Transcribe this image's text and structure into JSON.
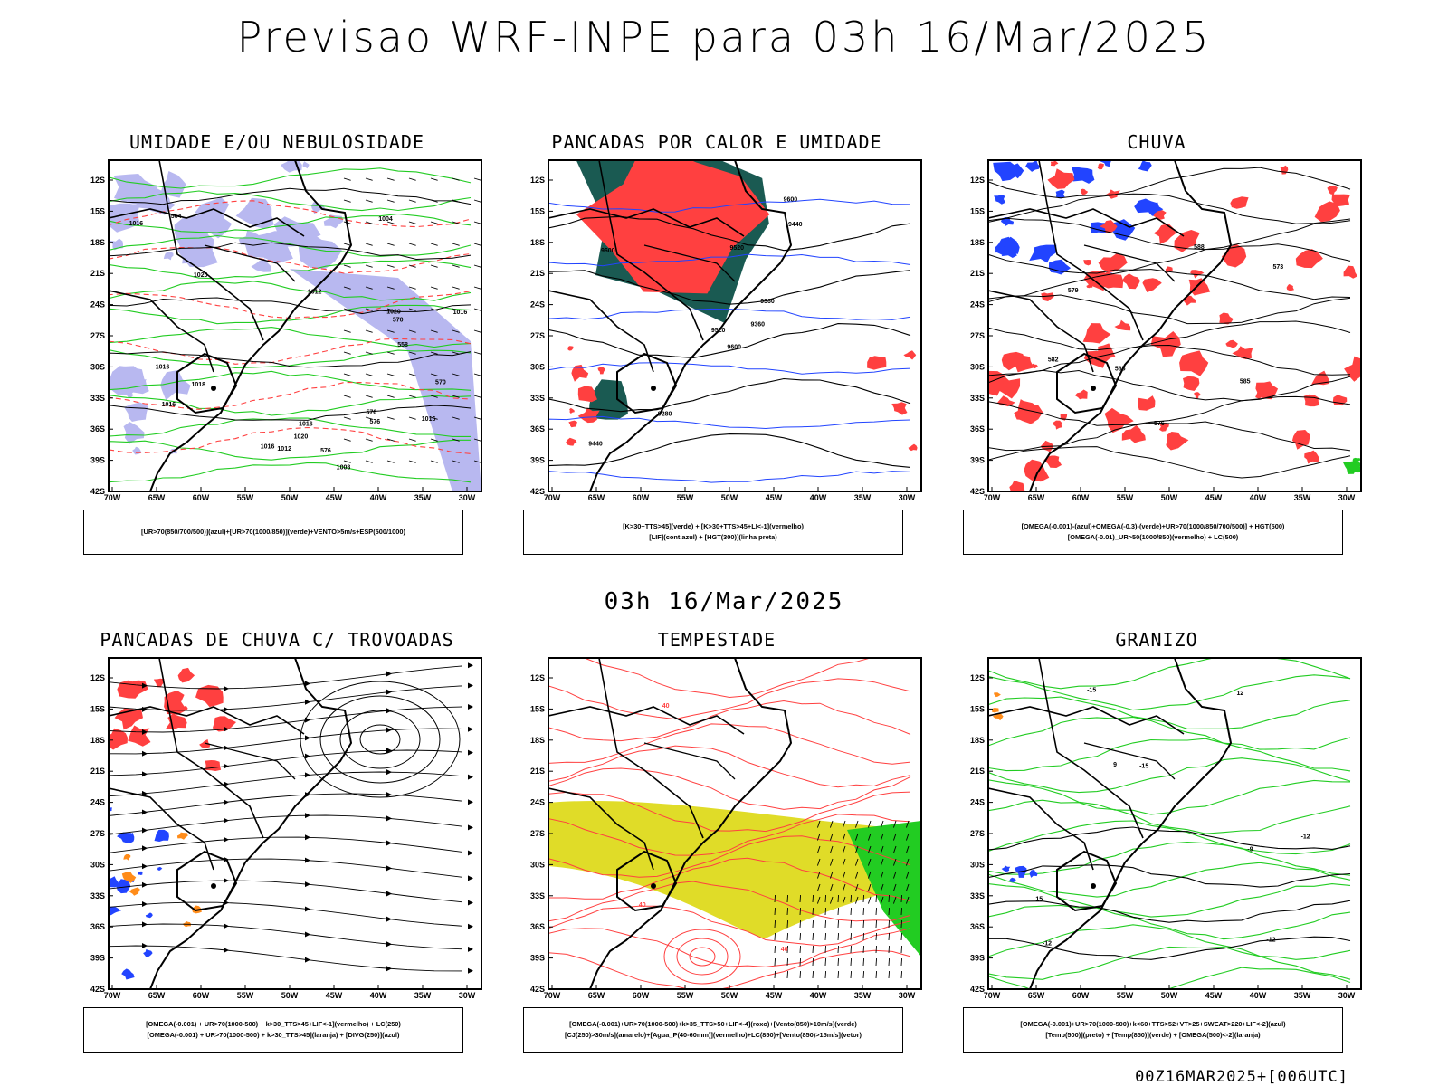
{
  "title": "Previsao WRF-INPE  para 03h 16/Mar/2025",
  "mid_title": "03h 16/Mar/2025",
  "footer": "00Z16MAR2025+[006UTC]",
  "lat_labels": [
    "12S",
    "15S",
    "18S",
    "21S",
    "24S",
    "27S",
    "30S",
    "33S",
    "36S",
    "39S",
    "42S"
  ],
  "lon_labels": [
    "70W",
    "65W",
    "60W",
    "55W",
    "50W",
    "45W",
    "40W",
    "35W",
    "30W"
  ],
  "colors": {
    "red": "#ff4040",
    "green": "#22cc22",
    "blue": "#2244ff",
    "teal": "#1a5a52",
    "lav": "#b8b8f0",
    "yellow": "#e0dc28",
    "orange": "#ff8c1a"
  },
  "panels": [
    {
      "title": "UMIDADE E/OU NEBULOSIDADE",
      "legend": [
        "[UR>70(850/700/500)](azul)+[UR>70(1000/850)](verde)+VENTO>5m/s+ESP(500/1000)"
      ],
      "labels": [
        "1016",
        "1016",
        "1012",
        "1016",
        "1016",
        "1016",
        "1020",
        "1016",
        "1020",
        "1020",
        "1018",
        "1016",
        "1012",
        "1008",
        "1004",
        "576",
        "576",
        "576",
        "570",
        "570",
        "564",
        "558"
      ]
    },
    {
      "title": "PANCADAS POR CALOR E UMIDADE",
      "legend": [
        "[K>30+TTS>45](verde) + [K>30+TTS>45+LI<-1](vermelho)",
        "[LIF](cont.azul) + [HGT(300)](linha preta)"
      ],
      "labels": [
        "9600",
        "9600",
        "9520",
        "9440",
        "9360",
        "9280",
        "9600",
        "9520",
        "9440",
        "9360"
      ]
    },
    {
      "title": "CHUVA",
      "legend": [
        "[OMEGA(-0.001)-(azul)+OMEGA(-0.3)-(verde)+UR>70(1000/850/700/500)] + HGT(500)",
        "[OMEGA(-0.01)_UR>50(1000/850)(vermelho) + LC(500)"
      ],
      "labels": [
        "588",
        "585",
        "585",
        "582",
        "579",
        "576",
        "573"
      ]
    },
    {
      "title": "PANCADAS DE CHUVA C/ TROVOADAS",
      "legend": [
        "[OMEGA(-0.001) + UR>70(1000-500) + k>30_TTS>45+LIF<-1](vermelho) + LC(250)",
        "[OMEGA(-0.001) + UR>70(1000-500) + k>30_TTS>45](laranja) + [DIVG(250)](azul)"
      ],
      "labels": []
    },
    {
      "title": "TEMPESTADE",
      "legend": [
        "[OMEGA(-0.001)+UR>70(1000-500)+k>35_TTS>50+LIF<-4](roxo)+[Vento(850)>10m/s](verde)",
        "[CJ(250)>30m/s](amarelo)+[Agua_P(40-60mm)](vermelho)+LC(850)+[Vento(850)>15m/s](vetor)"
      ],
      "labels": [
        "40",
        "40",
        "40"
      ]
    },
    {
      "title": "GRANIZO",
      "legend": [
        "[OMEGA(-0.001)+UR>70(1000-500)+k<60+TTS>52+VT>25+SWEAT>220+LIF<-2](azul)",
        "[Temp(500)](preto) + [Temp(850)](verde) + [OMEGA(500)<-2](laranja)"
      ],
      "labels": [
        "-9",
        "-12",
        "-12",
        "-15",
        "-15",
        "-12",
        "15",
        "12",
        "9"
      ]
    }
  ]
}
